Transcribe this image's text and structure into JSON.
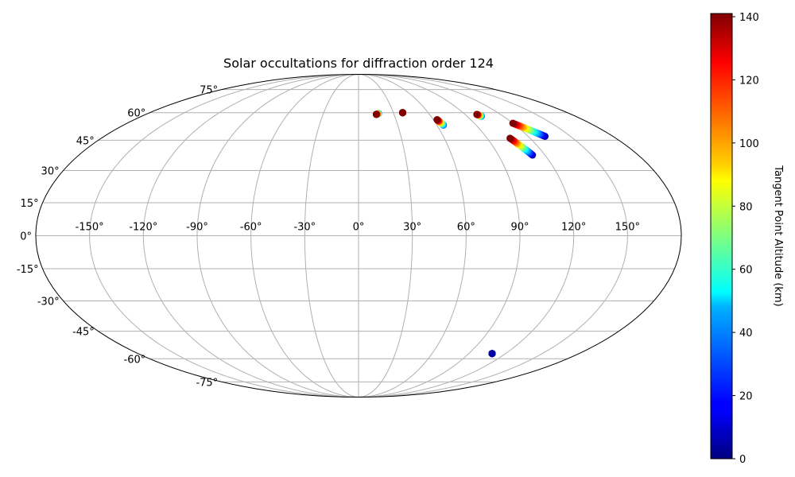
{
  "chart_data": {
    "type": "scatter",
    "projection": "mollweide",
    "title": "Solar occultations for diffraction order 124",
    "x_tick_labels": [
      "-150°",
      "-120°",
      "-90°",
      "-60°",
      "-30°",
      "0°",
      "30°",
      "60°",
      "90°",
      "120°",
      "150°"
    ],
    "x_ticks": [
      -150,
      -120,
      -90,
      -60,
      -30,
      0,
      30,
      60,
      90,
      120,
      150
    ],
    "y_tick_labels": [
      "-75°",
      "-60°",
      "-45°",
      "-30°",
      "-15°",
      "0°",
      "15°",
      "30°",
      "45°",
      "60°",
      "75°"
    ],
    "y_ticks": [
      -75,
      -60,
      -45,
      -30,
      -15,
      0,
      15,
      30,
      45,
      60,
      75
    ],
    "grid": true,
    "colormap": "jet",
    "colorbar": {
      "label": "Tangent Point Altitude (km)",
      "range": [
        0,
        141
      ],
      "tick_labels": [
        "0",
        "20",
        "40",
        "60",
        "80",
        "100",
        "120",
        "140"
      ],
      "ticks": [
        0,
        20,
        40,
        60,
        80,
        100,
        120,
        140
      ]
    },
    "tracks": [
      {
        "lon_start": 15,
        "lat_start": 59,
        "lon_end": 17,
        "lat_end": 59.5,
        "alt_max": 141,
        "alt_min": 30
      },
      {
        "lon_start": 38,
        "lat_start": 60,
        "lon_end": 38,
        "lat_end": 60,
        "alt_max": 141,
        "alt_min": 135
      },
      {
        "lon_start": 63,
        "lat_start": 56,
        "lon_end": 65,
        "lat_end": 53,
        "alt_max": 141,
        "alt_min": 30
      },
      {
        "lon_start": 100,
        "lat_start": 59,
        "lon_end": 102,
        "lat_end": 58,
        "alt_max": 141,
        "alt_min": 30
      },
      {
        "lon_start": 120,
        "lat_start": 54,
        "lon_end": 132,
        "lat_end": 47,
        "alt_max": 141,
        "alt_min": 5
      },
      {
        "lon_start": 106,
        "lat_start": 46,
        "lon_end": 112,
        "lat_end": 37.5,
        "alt_max": 141,
        "alt_min": 5
      },
      {
        "lon_start": 109,
        "lat_start": -57,
        "lon_end": 109,
        "lat_end": -57,
        "alt_max": 5,
        "alt_min": 0
      }
    ]
  },
  "colors": {
    "grid": "#b0b0b0",
    "frame": "#000000"
  }
}
